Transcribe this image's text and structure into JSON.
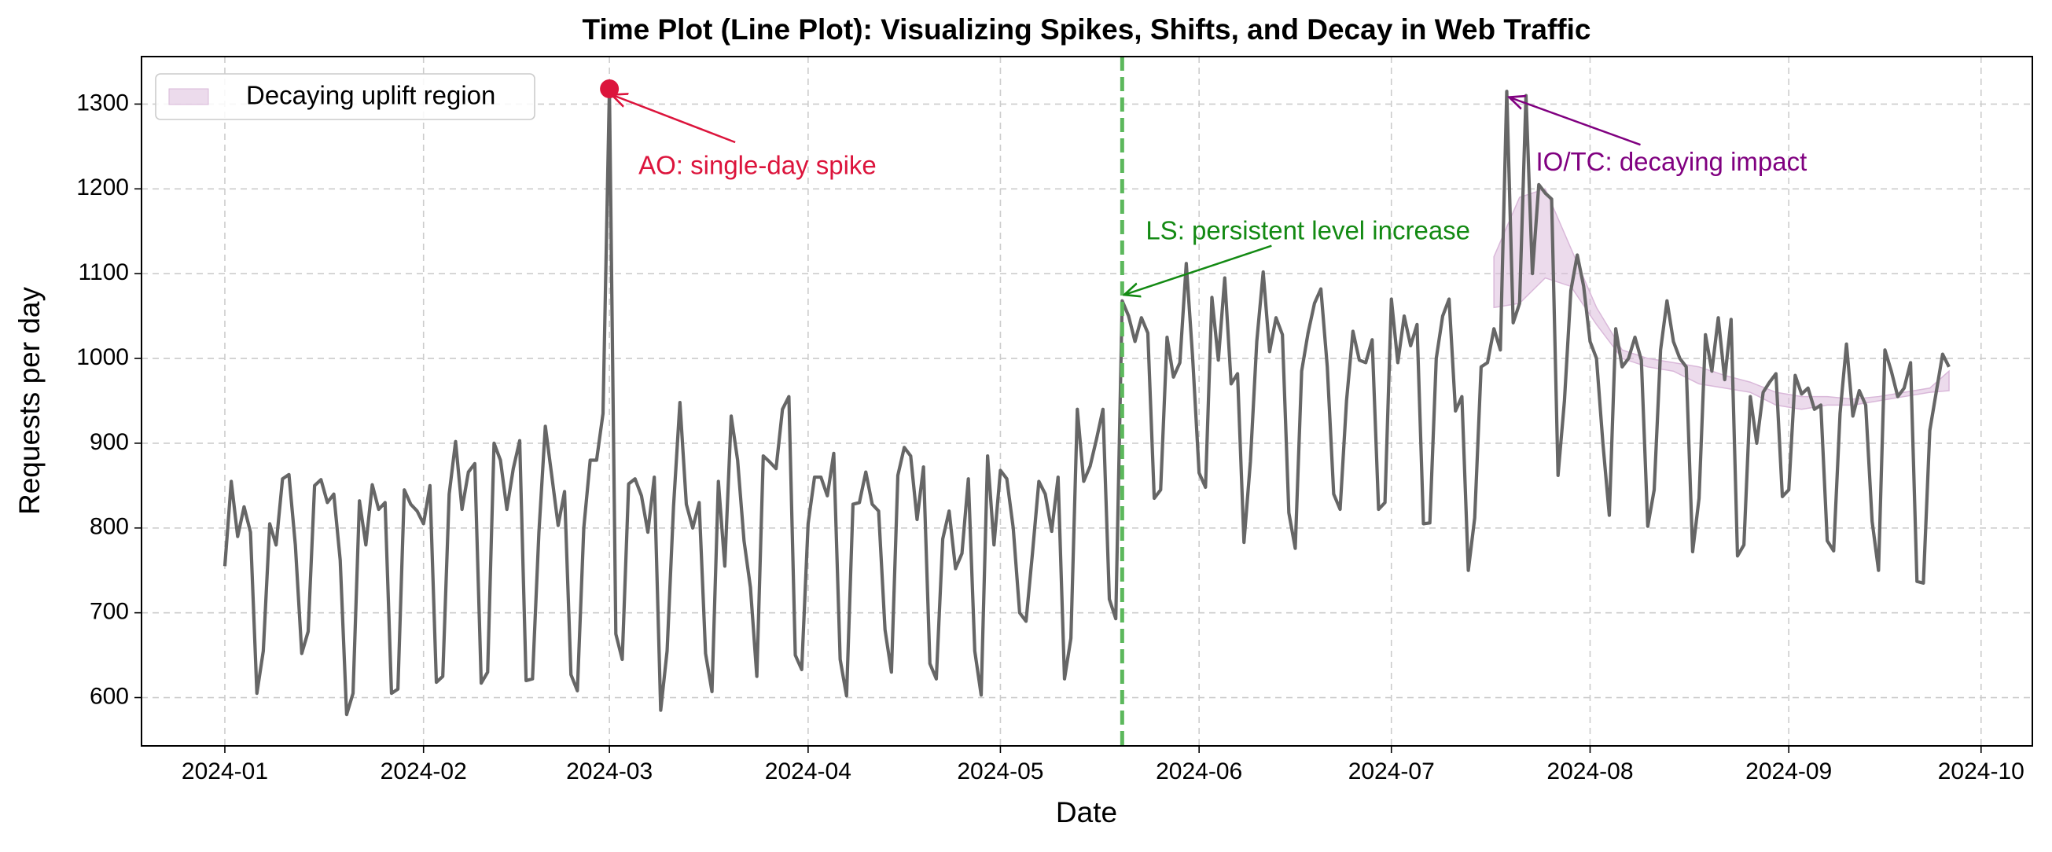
{
  "chart_data": {
    "type": "line",
    "title": "Time Plot (Line Plot): Visualizing Spikes, Shifts, and Decay in Web Traffic",
    "xlabel": "Date",
    "ylabel": "Requests per day",
    "x": [
      "2024-01-01",
      "2024-01-02",
      "2024-01-03",
      "2024-01-04",
      "2024-01-05",
      "2024-01-06",
      "2024-01-07",
      "2024-01-08",
      "2024-01-09",
      "2024-01-10",
      "2024-01-11",
      "2024-01-12",
      "2024-01-13",
      "2024-01-14",
      "2024-01-15",
      "2024-01-16",
      "2024-01-17",
      "2024-01-18",
      "2024-01-19",
      "2024-01-20",
      "2024-01-21",
      "2024-01-22",
      "2024-01-23",
      "2024-01-24",
      "2024-01-25",
      "2024-01-26",
      "2024-01-27",
      "2024-01-28",
      "2024-01-29",
      "2024-01-30",
      "2024-01-31",
      "2024-02-01",
      "2024-02-02",
      "2024-02-03",
      "2024-02-04",
      "2024-02-05",
      "2024-02-06",
      "2024-02-07",
      "2024-02-08",
      "2024-02-09",
      "2024-02-10",
      "2024-02-11",
      "2024-02-12",
      "2024-02-13",
      "2024-02-14",
      "2024-02-15",
      "2024-02-16",
      "2024-02-17",
      "2024-02-18",
      "2024-02-19",
      "2024-02-20",
      "2024-02-21",
      "2024-02-22",
      "2024-02-23",
      "2024-02-24",
      "2024-02-25",
      "2024-02-26",
      "2024-02-27",
      "2024-02-28",
      "2024-02-29",
      "2024-03-01",
      "2024-03-02",
      "2024-03-03",
      "2024-03-04",
      "2024-03-05",
      "2024-03-06",
      "2024-03-07",
      "2024-03-08",
      "2024-03-09",
      "2024-03-10",
      "2024-03-11",
      "2024-03-12",
      "2024-03-13",
      "2024-03-14",
      "2024-03-15",
      "2024-03-16",
      "2024-03-17",
      "2024-03-18",
      "2024-03-19",
      "2024-03-20",
      "2024-03-21",
      "2024-03-22",
      "2024-03-23",
      "2024-03-24",
      "2024-03-25",
      "2024-03-26",
      "2024-03-27",
      "2024-03-28",
      "2024-03-29",
      "2024-03-30",
      "2024-03-31",
      "2024-04-01",
      "2024-04-02",
      "2024-04-03",
      "2024-04-04",
      "2024-04-05",
      "2024-04-06",
      "2024-04-07",
      "2024-04-08",
      "2024-04-09",
      "2024-04-10",
      "2024-04-11",
      "2024-04-12",
      "2024-04-13",
      "2024-04-14",
      "2024-04-15",
      "2024-04-16",
      "2024-04-17",
      "2024-04-18",
      "2024-04-19",
      "2024-04-20",
      "2024-04-21",
      "2024-04-22",
      "2024-04-23",
      "2024-04-24",
      "2024-04-25",
      "2024-04-26",
      "2024-04-27",
      "2024-04-28",
      "2024-04-29",
      "2024-04-30",
      "2024-05-01",
      "2024-05-02",
      "2024-05-03",
      "2024-05-04",
      "2024-05-05",
      "2024-05-06",
      "2024-05-07",
      "2024-05-08",
      "2024-05-09",
      "2024-05-10",
      "2024-05-11",
      "2024-05-12",
      "2024-05-13",
      "2024-05-14",
      "2024-05-15",
      "2024-05-16",
      "2024-05-17",
      "2024-05-18",
      "2024-05-19",
      "2024-05-20",
      "2024-05-21",
      "2024-05-22",
      "2024-05-23",
      "2024-05-24",
      "2024-05-25",
      "2024-05-26",
      "2024-05-27",
      "2024-05-28",
      "2024-05-29",
      "2024-05-30",
      "2024-05-31",
      "2024-06-01",
      "2024-06-02",
      "2024-06-03",
      "2024-06-04",
      "2024-06-05",
      "2024-06-06",
      "2024-06-07",
      "2024-06-08",
      "2024-06-09",
      "2024-06-10",
      "2024-06-11",
      "2024-06-12",
      "2024-06-13",
      "2024-06-14",
      "2024-06-15",
      "2024-06-16",
      "2024-06-17",
      "2024-06-18",
      "2024-06-19",
      "2024-06-20",
      "2024-06-21",
      "2024-06-22",
      "2024-06-23",
      "2024-06-24",
      "2024-06-25",
      "2024-06-26",
      "2024-06-27",
      "2024-06-28",
      "2024-06-29",
      "2024-06-30",
      "2024-07-01",
      "2024-07-02",
      "2024-07-03",
      "2024-07-04",
      "2024-07-05",
      "2024-07-06",
      "2024-07-07",
      "2024-07-08",
      "2024-07-09",
      "2024-07-10",
      "2024-07-11",
      "2024-07-12",
      "2024-07-13",
      "2024-07-14",
      "2024-07-15",
      "2024-07-16",
      "2024-07-17",
      "2024-07-18",
      "2024-07-19",
      "2024-07-20",
      "2024-07-21",
      "2024-07-22",
      "2024-07-23",
      "2024-07-24",
      "2024-07-25",
      "2024-07-26",
      "2024-07-27",
      "2024-07-28",
      "2024-07-29",
      "2024-07-30",
      "2024-07-31",
      "2024-08-01",
      "2024-08-02",
      "2024-08-03",
      "2024-08-04",
      "2024-08-05",
      "2024-08-06",
      "2024-08-07",
      "2024-08-08",
      "2024-08-09",
      "2024-08-10",
      "2024-08-11",
      "2024-08-12",
      "2024-08-13",
      "2024-08-14",
      "2024-08-15",
      "2024-08-16",
      "2024-08-17",
      "2024-08-18",
      "2024-08-19",
      "2024-08-20",
      "2024-08-21",
      "2024-08-22",
      "2024-08-23",
      "2024-08-24",
      "2024-08-25",
      "2024-08-26",
      "2024-08-27",
      "2024-08-28",
      "2024-08-29",
      "2024-08-30",
      "2024-08-31",
      "2024-09-01",
      "2024-09-02",
      "2024-09-03",
      "2024-09-04",
      "2024-09-05",
      "2024-09-06",
      "2024-09-07",
      "2024-09-08",
      "2024-09-09",
      "2024-09-10",
      "2024-09-11",
      "2024-09-12",
      "2024-09-13",
      "2024-09-14",
      "2024-09-15",
      "2024-09-16",
      "2024-09-17",
      "2024-09-18",
      "2024-09-19",
      "2024-09-20",
      "2024-09-21",
      "2024-09-22",
      "2024-09-23",
      "2024-09-24",
      "2024-09-25",
      "2024-09-26"
    ],
    "series": [
      {
        "color": "#666666",
        "values": [
          755,
          855,
          790,
          825,
          795,
          605,
          655,
          805,
          780,
          858,
          863,
          780,
          652,
          678,
          850,
          857,
          830,
          840,
          762,
          580,
          605,
          832,
          780,
          851,
          822,
          830,
          605,
          610,
          845,
          828,
          820,
          805,
          850,
          618,
          625,
          840,
          902,
          822,
          866,
          876,
          617,
          630,
          900,
          880,
          822,
          870,
          903,
          620,
          622,
          795,
          920,
          862,
          803,
          843,
          627,
          608,
          800,
          880,
          880,
          935,
          1318,
          675,
          645,
          852,
          858,
          838,
          795,
          860,
          585,
          655,
          825,
          948,
          828,
          800,
          830,
          652,
          607,
          855,
          755,
          932,
          880,
          785,
          730,
          625,
          885,
          878,
          870,
          940,
          955,
          650,
          633,
          805,
          860,
          860,
          838,
          888,
          645,
          602,
          828,
          830,
          866,
          828,
          820,
          680,
          630,
          862,
          895,
          885,
          810,
          872,
          640,
          622,
          787,
          820,
          752,
          770,
          858,
          655,
          603,
          885,
          780,
          868,
          858,
          800,
          700,
          690,
          770,
          855,
          840,
          796,
          860,
          622,
          670,
          940,
          855,
          873,
          905,
          940,
          716,
          693,
          1068,
          1050,
          1020,
          1048,
          1030,
          835,
          845,
          1025,
          978,
          995,
          1112,
          1000,
          865,
          848,
          1072,
          998,
          1095,
          970,
          982,
          783,
          878,
          1020,
          1102,
          1008,
          1048,
          1028,
          818,
          776,
          985,
          1030,
          1065,
          1082,
          990,
          840,
          822,
          950,
          1032,
          998,
          995,
          1022,
          822,
          830,
          1070,
          995,
          1050,
          1015,
          1040,
          805,
          806,
          1000,
          1050,
          1070,
          938,
          955,
          750,
          812,
          990,
          995,
          1035,
          1010,
          1315,
          1042,
          1065,
          1310,
          1100,
          1205,
          1195,
          1188,
          862,
          950,
          1080,
          1122,
          1085,
          1020,
          1000,
          900,
          815,
          1035,
          990,
          1000,
          1025,
          998,
          802,
          845,
          1010,
          1068,
          1020,
          1000,
          990,
          772,
          835,
          1028,
          985,
          1048,
          975,
          1046,
          767,
          780,
          955,
          900,
          960,
          972,
          982,
          837,
          845,
          980,
          958,
          965,
          940,
          945,
          785,
          773,
          935,
          1017,
          932,
          962,
          945,
          808,
          750,
          1010,
          985,
          955,
          965,
          995,
          737,
          735,
          915,
          960,
          1005,
          990
        ]
      }
    ],
    "region": {
      "name": "Decaying uplift region",
      "color": "#d9b8d9",
      "x": [
        "2024-07-17",
        "2024-07-21",
        "2024-07-25",
        "2024-07-29",
        "2024-08-02",
        "2024-08-06",
        "2024-08-10",
        "2024-08-14",
        "2024-08-18",
        "2024-08-22",
        "2024-08-26",
        "2024-08-30",
        "2024-09-03",
        "2024-09-07",
        "2024-09-11",
        "2024-09-15",
        "2024-09-19",
        "2024-09-23",
        "2024-09-26"
      ],
      "lower": [
        1060,
        1065,
        1095,
        1085,
        1040,
        1000,
        990,
        985,
        970,
        965,
        960,
        945,
        940,
        945,
        945,
        950,
        955,
        960,
        962
      ],
      "upper": [
        1120,
        1190,
        1200,
        1130,
        1060,
        1010,
        1000,
        995,
        990,
        980,
        972,
        960,
        955,
        955,
        952,
        955,
        960,
        965,
        985
      ]
    },
    "vline": {
      "x": "2024-05-20",
      "color": "#5cb85c"
    },
    "annotations": [
      {
        "text": "AO: single-day spike",
        "x": "2024-03-01",
        "y": 1318,
        "color": "#dc143c",
        "marker": true
      },
      {
        "text": "LS: persistent level increase",
        "x": "2024-05-20",
        "y": 1068,
        "color": "#138a13",
        "marker": false
      },
      {
        "text": "IO/TC: decaying impact",
        "x": "2024-07-19",
        "y": 1315,
        "color": "#800080",
        "marker": false
      }
    ],
    "xlim": [
      "2023-12-19",
      "2024-10-09"
    ],
    "xticks": [
      {
        "value": "2024-01-01",
        "label": "2024-01"
      },
      {
        "value": "2024-02-01",
        "label": "2024-02"
      },
      {
        "value": "2024-03-01",
        "label": "2024-03"
      },
      {
        "value": "2024-04-01",
        "label": "2024-04"
      },
      {
        "value": "2024-05-01",
        "label": "2024-05"
      },
      {
        "value": "2024-06-01",
        "label": "2024-06"
      },
      {
        "value": "2024-07-01",
        "label": "2024-07"
      },
      {
        "value": "2024-08-01",
        "label": "2024-08"
      },
      {
        "value": "2024-09-01",
        "label": "2024-09"
      },
      {
        "value": "2024-10-01",
        "label": "2024-10"
      }
    ],
    "ylim": [
      543,
      1356
    ],
    "yticks": [
      600,
      700,
      800,
      900,
      1000,
      1100,
      1200,
      1300
    ],
    "grid": true,
    "legend": "upper left"
  }
}
